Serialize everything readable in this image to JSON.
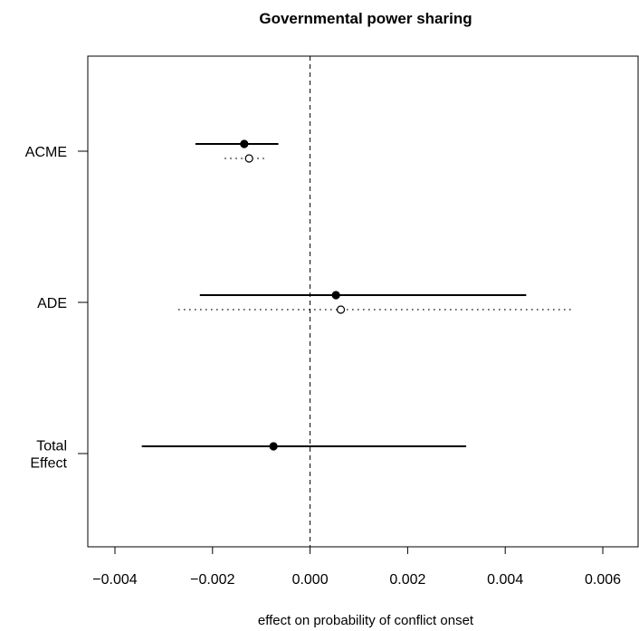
{
  "chart_data": {
    "type": "scatter",
    "subtype": "coefficient-plot",
    "title": "Governmental power sharing",
    "xlabel": "effect on probability of conflict onset",
    "ylabel": "",
    "xlim": [
      -0.0045,
      0.0067
    ],
    "xticks": [
      "-0.004",
      "-0.002",
      "0.000",
      "0.002",
      "0.004",
      "0.006"
    ],
    "xtick_values": [
      -0.004,
      -0.002,
      0,
      0.002,
      0.004,
      0.006
    ],
    "reference_line_x": 0,
    "grid": false,
    "categories": [
      {
        "label": "ACME",
        "lines": [
          "ACME"
        ]
      },
      {
        "label": "ADE",
        "lines": [
          "ADE"
        ]
      },
      {
        "label": "Total Effect",
        "lines": [
          "Total",
          "Effect"
        ]
      }
    ],
    "series": [
      {
        "style": "solid-filled",
        "values": [
          {
            "category": "ACME",
            "estimate": -0.00135,
            "lower": -0.00235,
            "upper": -0.00065
          },
          {
            "category": "ADE",
            "estimate": 0.00053,
            "lower": -0.00226,
            "upper": 0.00443
          },
          {
            "category": "Total Effect",
            "estimate": -0.00075,
            "lower": -0.00345,
            "upper": 0.0032
          }
        ]
      },
      {
        "style": "dotted-open",
        "values": [
          {
            "category": "ACME",
            "estimate": -0.00125,
            "lower": -0.00175,
            "upper": -0.0009
          },
          {
            "category": "ADE",
            "estimate": 0.00063,
            "lower": -0.0027,
            "upper": 0.00535
          }
        ]
      }
    ]
  }
}
